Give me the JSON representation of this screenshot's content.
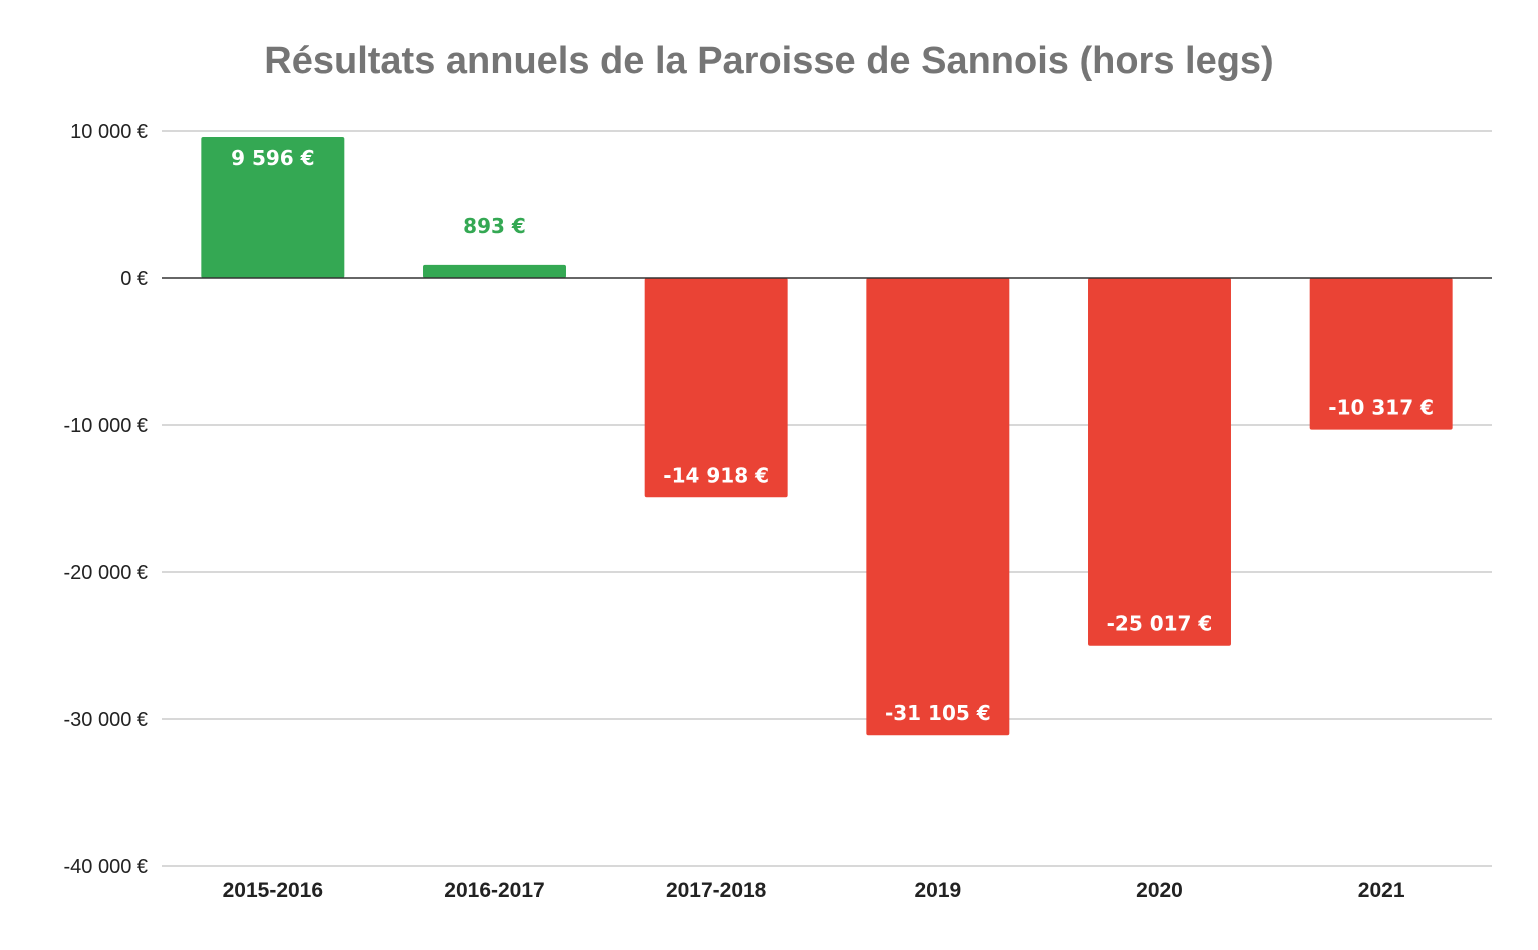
{
  "chart_data": {
    "type": "bar",
    "title": "Résultats annuels de la Paroisse de Sannois (hors legs)",
    "xlabel": "",
    "ylabel": "",
    "categories": [
      "2015-2016",
      "2016-2017",
      "2017-2018",
      "2019",
      "2020",
      "2021"
    ],
    "values": [
      9596,
      893,
      -14918,
      -31105,
      -25017,
      -10317
    ],
    "data_labels": [
      "9 596 €",
      "893 €",
      "-14 918 €",
      "-31 105 €",
      "-25 017 €",
      "-10 317 €"
    ],
    "ylim": [
      -40000,
      10000
    ],
    "yticks": [
      10000,
      0,
      -10000,
      -20000,
      -30000,
      -40000
    ],
    "ytick_labels": [
      "10 000 €",
      "0 €",
      "-10 000 €",
      "-20 000 €",
      "-30 000 €",
      "-40 000 €"
    ],
    "grid": true,
    "legend": "none",
    "colors": {
      "positive": "#34a853",
      "negative": "#ea4335",
      "label_inside": "#ffffff",
      "gridline": "#cccccc",
      "zero_line": "#333333",
      "title": "#757575"
    }
  }
}
